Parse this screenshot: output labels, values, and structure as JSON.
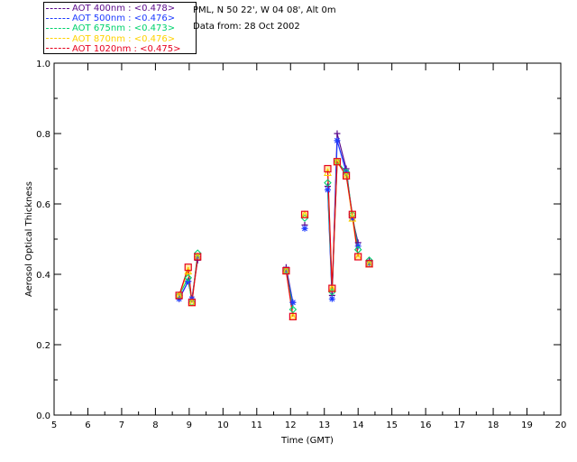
{
  "header": {
    "site": "PML, N 50 22', W 04 08', Alt 0m",
    "date": "Data from: 28 Oct 2002"
  },
  "legend": [
    {
      "label": "AOT  400nm : <0.478>",
      "color": "#5a0a8c"
    },
    {
      "label": "AOT  500nm : <0.476>",
      "color": "#1e3cff"
    },
    {
      "label": "AOT  675nm : <0.473>",
      "color": "#00d26e"
    },
    {
      "label": "AOT  870nm : <0.476>",
      "color": "#ffd200"
    },
    {
      "label": "AOT 1020nm : <0.475>",
      "color": "#e6001e"
    }
  ],
  "chart_data": {
    "type": "line",
    "xlabel": "Time (GMT)",
    "ylabel": "Aerosol Optical Thickness",
    "xlim": [
      5,
      20
    ],
    "ylim": [
      0.0,
      1.0
    ],
    "xticks": [
      "5",
      "6",
      "7",
      "8",
      "9",
      "10",
      "11",
      "12",
      "13",
      "14",
      "15",
      "16",
      "17",
      "18",
      "19",
      "20"
    ],
    "yticks": [
      "0.0",
      "0.2",
      "0.4",
      "0.6",
      "0.8",
      "1.0"
    ],
    "x": [
      8.7,
      8.97,
      9.08,
      9.25,
      11.87,
      12.07,
      12.42,
      13.1,
      13.23,
      13.38,
      13.65,
      13.83,
      14.0,
      14.33
    ],
    "segments": [
      [
        0,
        1,
        2,
        3
      ],
      [
        4,
        5
      ],
      [
        6
      ],
      [
        7,
        8,
        9,
        10,
        11,
        12
      ],
      [
        13
      ]
    ],
    "series": [
      {
        "name": "AOT  400nm : <0.478>",
        "color": "#5a0a8c",
        "marker": "plus",
        "values": [
          0.33,
          0.38,
          0.33,
          0.44,
          0.42,
          0.32,
          0.54,
          0.65,
          0.34,
          0.8,
          0.7,
          0.56,
          0.49,
          0.44
        ]
      },
      {
        "name": "AOT  500nm : <0.476>",
        "color": "#1e3cff",
        "marker": "star",
        "values": [
          0.33,
          0.38,
          0.33,
          0.45,
          0.41,
          0.32,
          0.53,
          0.64,
          0.33,
          0.78,
          0.69,
          0.56,
          0.48,
          0.43
        ]
      },
      {
        "name": "AOT  675nm : <0.473>",
        "color": "#00d26e",
        "marker": "diamond",
        "values": [
          0.34,
          0.39,
          0.32,
          0.46,
          0.41,
          0.3,
          0.56,
          0.66,
          0.35,
          0.72,
          0.69,
          0.57,
          0.47,
          0.44
        ]
      },
      {
        "name": "AOT  870nm : <0.476>",
        "color": "#ffd200",
        "marker": "triangle",
        "values": [
          0.34,
          0.41,
          0.32,
          0.45,
          0.41,
          0.28,
          0.57,
          0.69,
          0.36,
          0.72,
          0.68,
          0.56,
          0.45,
          0.43
        ]
      },
      {
        "name": "AOT 1020nm : <0.475>",
        "color": "#e6001e",
        "marker": "square",
        "values": [
          0.34,
          0.42,
          0.32,
          0.45,
          0.41,
          0.28,
          0.57,
          0.7,
          0.36,
          0.72,
          0.68,
          0.57,
          0.45,
          0.43
        ]
      }
    ]
  }
}
